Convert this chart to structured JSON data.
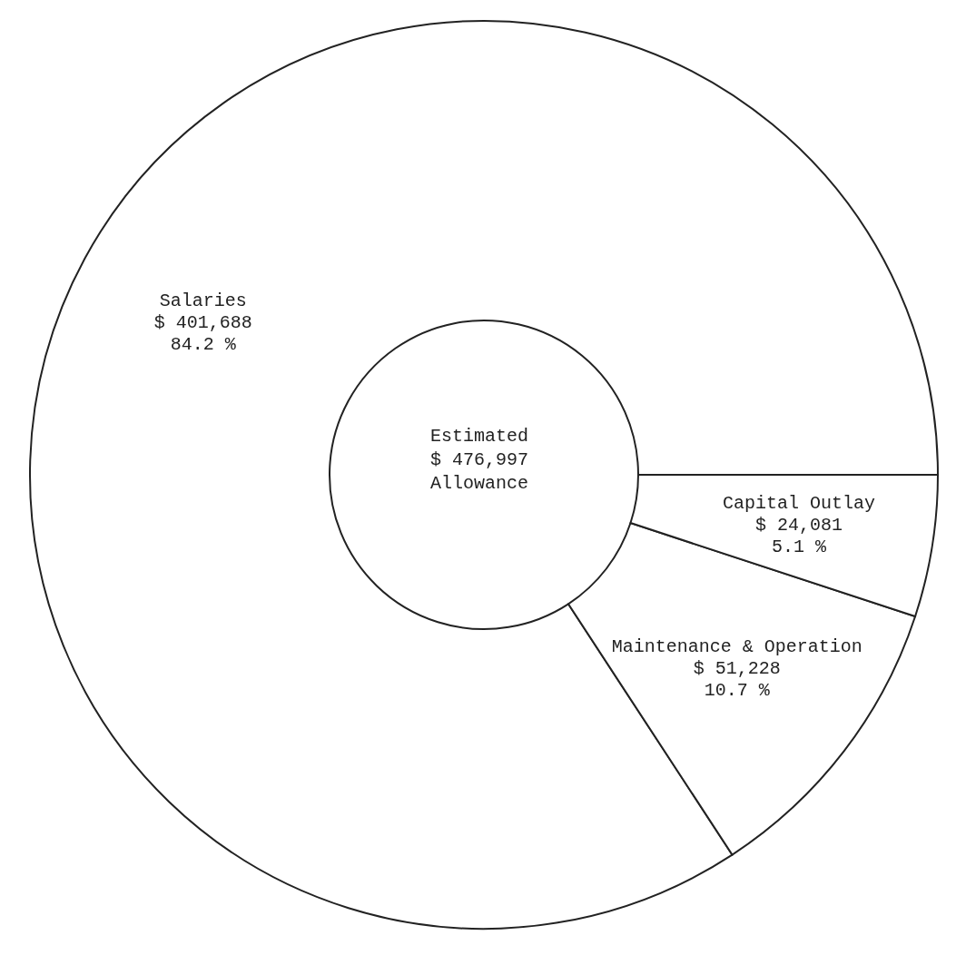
{
  "chart_data": {
    "type": "donut",
    "categories": [
      "Salaries",
      "Maintenance & Operation",
      "Capital Outlay"
    ],
    "values": [
      401688,
      51228,
      24081
    ],
    "value_labels": [
      "$ 401,688\n84.2 %",
      "$ 51,228\n10.7 %",
      "$ 24,081\n5.1 %"
    ],
    "colors": [
      "#ffffff",
      "#ffffff",
      "#ffffff"
    ],
    "annotations": [
      "Estimated\n$ 476,997\nAllowance"
    ]
  }
}
